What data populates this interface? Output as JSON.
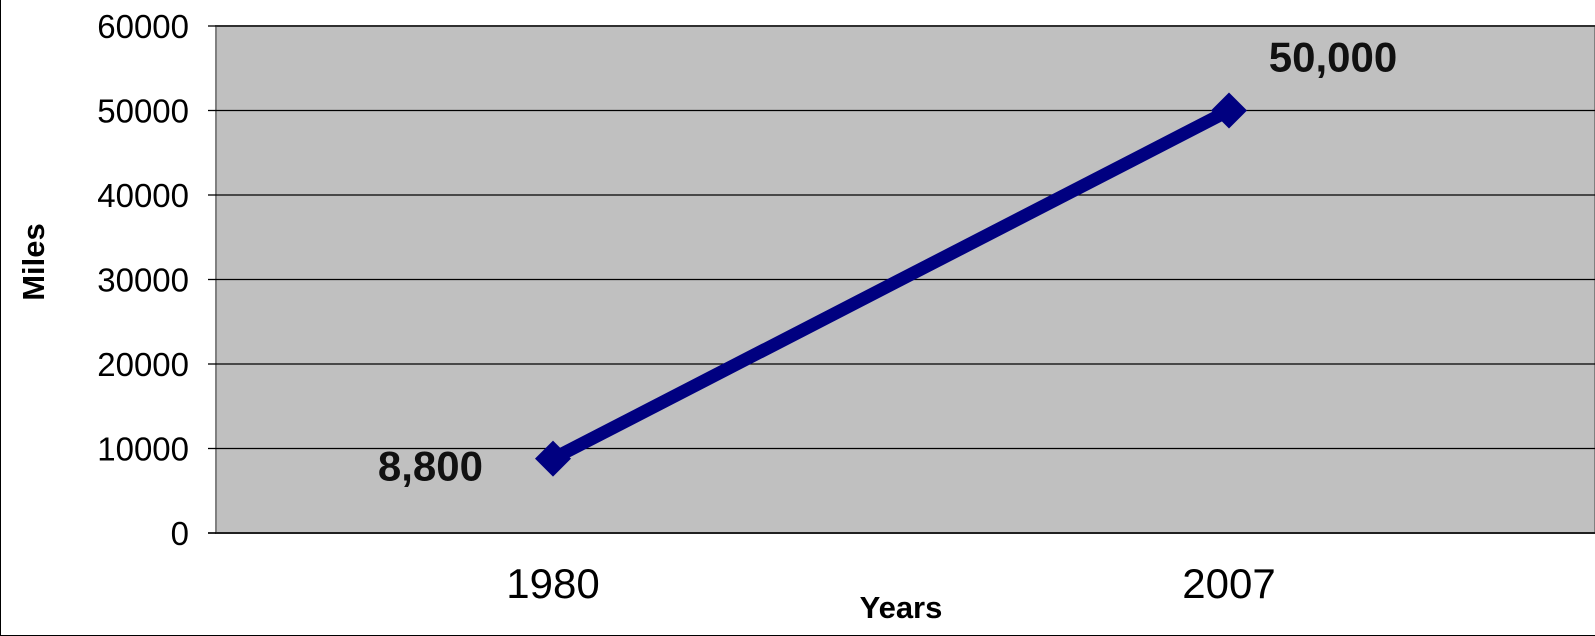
{
  "chart_data": {
    "type": "line",
    "title": "",
    "xlabel": "Years",
    "ylabel": "Miles",
    "categories": [
      "1980",
      "2007"
    ],
    "series": [
      {
        "values": [
          8800,
          50000
        ],
        "data_labels": [
          "8,800",
          "50,000"
        ],
        "color": "#000080",
        "marker": "diamond"
      }
    ],
    "ylim": [
      0,
      60000
    ],
    "yticks": [
      "0",
      "10000",
      "20000",
      "30000",
      "40000",
      "50000",
      "60000"
    ],
    "grid": true,
    "legend": "none",
    "plot_background": "#c0c0c0"
  }
}
